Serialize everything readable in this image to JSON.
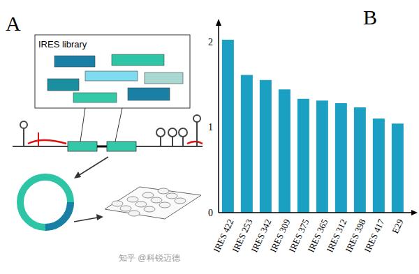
{
  "panel_labels": [
    "A",
    "B"
  ],
  "diagram": {
    "title": "IRES library"
  },
  "watermark": "知乎 @科锐迈德",
  "chart_data": {
    "type": "bar",
    "categories": [
      "IRES 422",
      "IRES 253",
      "IRES 342",
      "IRES 309",
      "IRES 375",
      "IRES 365",
      "IRES 312",
      "IRES 398",
      "IRES 417",
      "E29"
    ],
    "values": [
      2.02,
      1.61,
      1.55,
      1.44,
      1.33,
      1.31,
      1.28,
      1.23,
      1.1,
      1.04
    ],
    "color": "#1b9fc2",
    "ylim": [
      0,
      2.2
    ],
    "yticks": [
      0,
      1,
      2
    ],
    "grid": false
  }
}
